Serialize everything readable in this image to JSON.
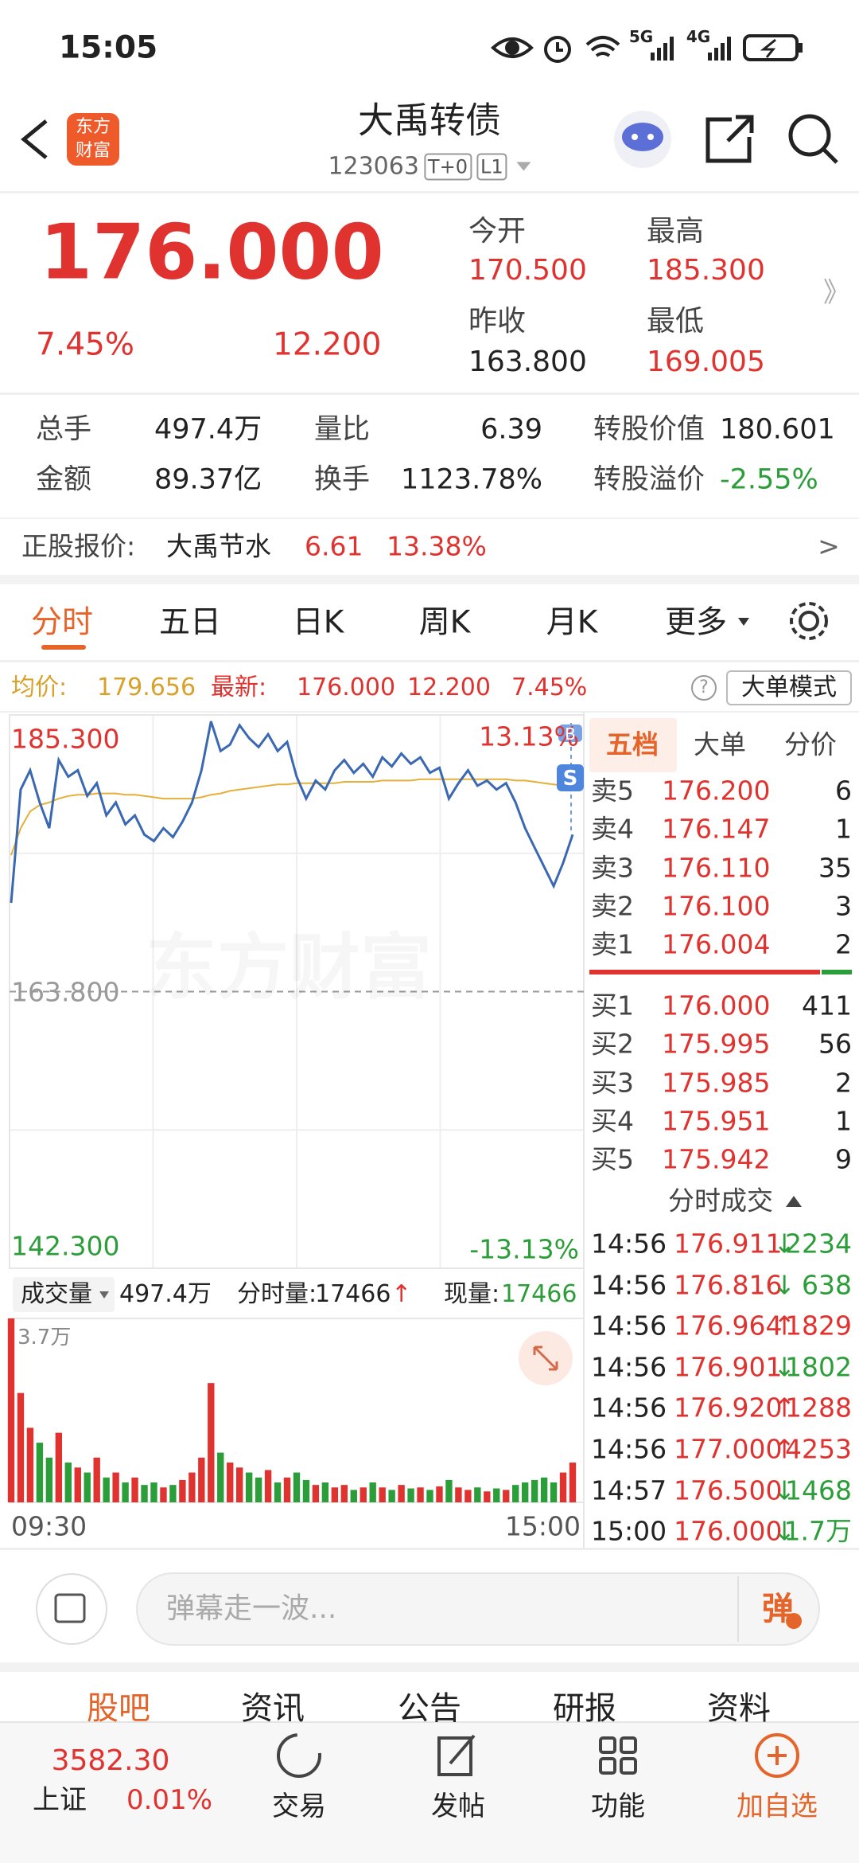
{
  "status_bar": {
    "time": "15:05",
    "network": [
      "5G",
      "4G"
    ]
  },
  "header": {
    "title": "大禹转债",
    "code": "123063",
    "badges": [
      "T+0",
      "L1"
    ],
    "logo": [
      "东方",
      "财富"
    ]
  },
  "quote": {
    "price": "176.000",
    "change_pct": "7.45%",
    "change": "12.200",
    "open_label": "今开",
    "open": "170.500",
    "high_label": "最高",
    "high": "185.300",
    "prev_close_label": "昨收",
    "prev_close": "163.800",
    "low_label": "最低",
    "low": "169.005",
    "more": "》"
  },
  "stats": [
    [
      "总手",
      "497.4万"
    ],
    [
      "金额",
      "89.37亿"
    ],
    [
      "量比",
      "6.39"
    ],
    [
      "换手",
      "1123.78%"
    ],
    [
      "转股价值",
      "180.601"
    ],
    [
      "转股溢价",
      "-2.55%"
    ]
  ],
  "underlying": {
    "label": "正股报价:",
    "name": "大禹节水",
    "price": "6.61",
    "change_pct": "13.38%",
    "more": ">"
  },
  "tabs": [
    "分时",
    "五日",
    "日K",
    "周K",
    "月K",
    "更多"
  ],
  "info_row": {
    "avg_label": "均价:",
    "avg": "179.656",
    "last_label": "最新:",
    "last": "176.000",
    "change": "12.200",
    "change_pct": "7.45%",
    "help": "?",
    "mode_button": "大单模式"
  },
  "intraday_chart": {
    "type": "line",
    "ylim": [
      142.3,
      185.3
    ],
    "yticks": [
      {
        "value": 185.3,
        "label": "185.300"
      },
      {
        "value": 163.8,
        "label": "163.800"
      },
      {
        "value": 142.3,
        "label": "142.300"
      }
    ],
    "pct_top": "13.13%",
    "pct_bottom": "-13.13%",
    "watermark": "东方财富",
    "sell_marker": "S",
    "buy_marker": "B",
    "x_labels": [
      "09:30",
      "15:00"
    ],
    "series": [
      {
        "color": "#3a68b2",
        "values": [
          170.7,
          179.5,
          181.0,
          178.5,
          176.5,
          181.8,
          180.5,
          181.0,
          179.0,
          180.0,
          177.5,
          178.5,
          176.8,
          177.5,
          176.0,
          175.5,
          176.5,
          175.8,
          177.0,
          178.5,
          181.0,
          184.8,
          182.5,
          183.0,
          184.5,
          183.5,
          182.8,
          183.8,
          182.5,
          183.2,
          180.5,
          178.8,
          180.2,
          179.5,
          181.0,
          181.8,
          180.8,
          181.5,
          180.5,
          182.0,
          181.3,
          182.3,
          181.5,
          182.0,
          180.8,
          181.2,
          178.8,
          180.0,
          181.0,
          179.8,
          180.2,
          179.5,
          180.0,
          178.5,
          176.5,
          175.0,
          173.5,
          172.0,
          173.8,
          176.0
        ]
      },
      {
        "color": "#e5b03a",
        "values": [
          174.4,
          176.5,
          177.8,
          178.3,
          178.5,
          178.8,
          179.0,
          179.1,
          179.1,
          179.2,
          179.2,
          179.2,
          179.1,
          179.1,
          179.0,
          178.9,
          178.8,
          178.8,
          178.8,
          178.8,
          178.9,
          179.1,
          179.2,
          179.4,
          179.5,
          179.6,
          179.7,
          179.8,
          179.9,
          179.9,
          180.0,
          180.0,
          180.0,
          180.0,
          180.0,
          180.1,
          180.1,
          180.1,
          180.1,
          180.2,
          180.2,
          180.2,
          180.2,
          180.3,
          180.3,
          180.3,
          180.3,
          180.3,
          180.3,
          180.3,
          180.3,
          180.3,
          180.3,
          180.2,
          180.2,
          180.1,
          180.0,
          179.9,
          179.8,
          179.7
        ]
      }
    ]
  },
  "volume_header": {
    "label": "成交量",
    "total": "497.4万",
    "tick_label": "分时量:",
    "tick_volume": "17466",
    "tick_arrow": "↑",
    "now_label": "现量:",
    "now_volume": "17466"
  },
  "volume_chart": {
    "type": "bar",
    "ylim": [
      0,
      37000
    ],
    "yticks": [
      {
        "value": 37000,
        "label": "3.7万"
      }
    ],
    "up_color": "#e0322f",
    "down_color": "#2b9e3a",
    "values": [
      37000,
      22000,
      15000,
      12000,
      9000,
      14000,
      8000,
      7000,
      6000,
      9000,
      5000,
      6000,
      4000,
      5000,
      3500,
      4000,
      3000,
      3500,
      4500,
      6000,
      9000,
      24000,
      10000,
      8000,
      7000,
      6000,
      5000,
      6500,
      4000,
      5000,
      6000,
      4500,
      3500,
      4000,
      3000,
      3500,
      2500,
      3000,
      4000,
      3000,
      2500,
      3500,
      2800,
      3000,
      2500,
      3200,
      4500,
      3000,
      2500,
      3000,
      2200,
      2800,
      2500,
      3500,
      4000,
      4500,
      5000,
      4000,
      6000,
      8000
    ]
  },
  "order_book": {
    "tabs": [
      "五档",
      "大单",
      "分价"
    ],
    "asks": [
      [
        "卖5",
        "176.200",
        "6"
      ],
      [
        "卖4",
        "176.147",
        "1"
      ],
      [
        "卖3",
        "176.110",
        "35"
      ],
      [
        "卖2",
        "176.100",
        "3"
      ],
      [
        "卖1",
        "176.004",
        "2"
      ]
    ],
    "bids": [
      [
        "买1",
        "176.000",
        "411"
      ],
      [
        "买2",
        "175.995",
        "56"
      ],
      [
        "买3",
        "175.985",
        "2"
      ],
      [
        "买4",
        "175.951",
        "1"
      ],
      [
        "买5",
        "175.942",
        "9"
      ]
    ]
  },
  "trades": {
    "title": "分时成交",
    "rows": [
      {
        "time": "14:56",
        "price": "176.911",
        "arrow": "↓",
        "qty": "2234",
        "color": "#2b9e3a"
      },
      {
        "time": "14:56",
        "price": "176.816",
        "arrow": "↓",
        "qty": "638",
        "color": "#2b9e3a"
      },
      {
        "time": "14:56",
        "price": "176.964",
        "arrow": "↑",
        "qty": "1829",
        "color": "#e0322f"
      },
      {
        "time": "14:56",
        "price": "176.901",
        "arrow": "↓",
        "qty": "1802",
        "color": "#2b9e3a"
      },
      {
        "time": "14:56",
        "price": "176.920",
        "arrow": "↑",
        "qty": "1288",
        "color": "#e0322f"
      },
      {
        "time": "14:56",
        "price": "177.000",
        "arrow": "↑",
        "qty": "4253",
        "color": "#e0322f"
      },
      {
        "time": "14:57",
        "price": "176.500",
        "arrow": "↓",
        "qty": "1468",
        "color": "#2b9e3a"
      },
      {
        "time": "15:00",
        "price": "176.000",
        "arrow": "↓",
        "qty": "1.7万",
        "color": "#2b9e3a"
      }
    ]
  },
  "comment_bar": {
    "placeholder": "弹幕走一波...",
    "button": "弹"
  },
  "section_tabs": [
    "股吧",
    "资讯",
    "公告",
    "研报",
    "资料"
  ],
  "bottom_bar": {
    "index_value": "3582.30",
    "index_name": "上证",
    "index_change": "0.01%",
    "items": [
      "交易",
      "发帖",
      "功能",
      "加自选"
    ]
  }
}
